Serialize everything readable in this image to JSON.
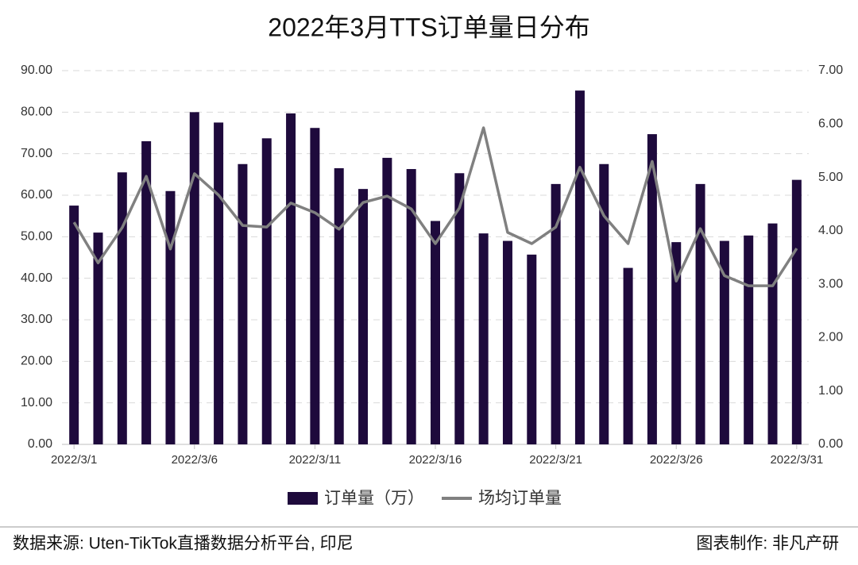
{
  "chart_data": {
    "type": "bar_line",
    "title": "2022年3月TTS订单量日分布",
    "categories": [
      "2022/3/1",
      null,
      null,
      null,
      null,
      "2022/3/6",
      null,
      null,
      null,
      null,
      "2022/3/11",
      null,
      null,
      null,
      null,
      "2022/3/16",
      null,
      null,
      null,
      null,
      "2022/3/21",
      null,
      null,
      null,
      null,
      "2022/3/26",
      null,
      null,
      null,
      null,
      "2022/3/31"
    ],
    "series": [
      {
        "name": "订单量（万）",
        "color": "#1e0a3c",
        "type": "bar",
        "values": [
          57.5,
          51,
          65.5,
          73,
          61,
          80,
          77.5,
          67.5,
          73.7,
          79.7,
          76.2,
          66.5,
          61.5,
          69,
          66.3,
          53.8,
          65.3,
          50.8,
          49,
          45.7,
          62.7,
          85.2,
          67.5,
          42.5,
          74.7,
          48.7,
          62.7,
          49,
          50.3,
          53.2,
          63.7
        ]
      },
      {
        "name": "场均订单量",
        "color": "#808080",
        "type": "line",
        "axis": "y2",
        "values": [
          4.16,
          3.4,
          4.06,
          5.02,
          3.66,
          5.07,
          4.67,
          4.1,
          4.07,
          4.52,
          4.34,
          4.03,
          4.53,
          4.65,
          4.41,
          3.76,
          4.43,
          5.93,
          3.97,
          3.76,
          4.07,
          5.19,
          4.28,
          3.76,
          5.3,
          3.06,
          4.04,
          3.16,
          2.97,
          2.97,
          3.67
        ]
      }
    ],
    "ylim": [
      0,
      90
    ],
    "yticks": [
      {
        "value": 0,
        "label": "0.00"
      },
      {
        "value": 10,
        "label": "10.00"
      },
      {
        "value": 20,
        "label": "20.00"
      },
      {
        "value": 30,
        "label": "30.00"
      },
      {
        "value": 40,
        "label": "40.00"
      },
      {
        "value": 50,
        "label": "50.00"
      },
      {
        "value": 60,
        "label": "60.00"
      },
      {
        "value": 70,
        "label": "70.00"
      },
      {
        "value": 80,
        "label": "80.00"
      },
      {
        "value": 90,
        "label": "90.00"
      }
    ],
    "y2lim": [
      0,
      7
    ],
    "y2ticks": [
      {
        "value": 0,
        "label": "0.00"
      },
      {
        "value": 1,
        "label": "1.00"
      },
      {
        "value": 2,
        "label": "2.00"
      },
      {
        "value": 3,
        "label": "3.00"
      },
      {
        "value": 4,
        "label": "4.00"
      },
      {
        "value": 5,
        "label": "5.00"
      },
      {
        "value": 6,
        "label": "6.00"
      },
      {
        "value": 7,
        "label": "7.00"
      }
    ],
    "grid": true,
    "legend": "bottom",
    "source": "数据来源: Uten-TikTok直播数据分析平台, 印尼",
    "credit": "图表制作: 非凡产研"
  }
}
